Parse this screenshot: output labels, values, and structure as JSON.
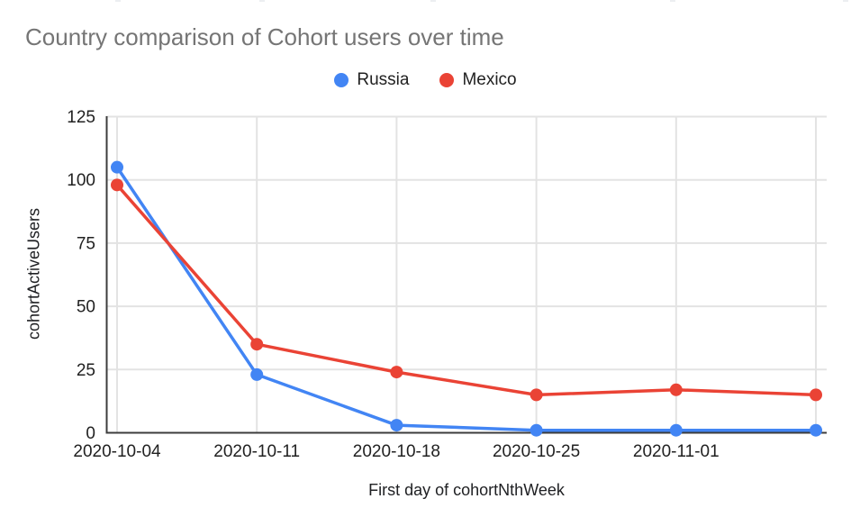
{
  "chart_data": {
    "type": "line",
    "title": "Country comparison of Cohort users over time",
    "xlabel": "First day of cohortNthWeek",
    "ylabel": "cohortActiveUsers",
    "x_tick_labels": [
      "2020-10-04",
      "2020-10-11",
      "2020-10-18",
      "2020-10-25",
      "2020-11-01",
      ""
    ],
    "y_ticks": [
      0,
      25,
      50,
      75,
      100,
      125
    ],
    "ylim": [
      0,
      125
    ],
    "grid": true,
    "legend_position": "top",
    "series": [
      {
        "name": "Russia",
        "color": "#4285F4",
        "values": [
          105,
          23,
          3,
          1,
          1,
          1
        ]
      },
      {
        "name": "Mexico",
        "color": "#EA4335",
        "values": [
          98,
          35,
          24,
          15,
          17,
          15
        ]
      }
    ],
    "colors": {
      "title_text": "#757575",
      "axis_text": "#212121",
      "grid_line": "#e3e3e3",
      "axis_line": "#3c3c3c",
      "background": "#ffffff"
    }
  }
}
